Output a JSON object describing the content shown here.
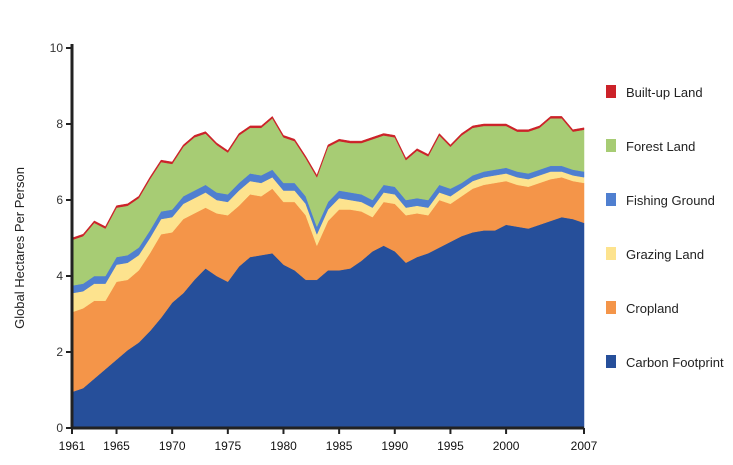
{
  "chart_data": {
    "type": "area",
    "stacked": true,
    "ylabel": "Global Hectares Per Person",
    "xlabel": "",
    "ylim": [
      0,
      10
    ],
    "xlim": [
      1961,
      2007
    ],
    "yticks": [
      0,
      2,
      4,
      6,
      8,
      10
    ],
    "xticks": [
      1961,
      1965,
      1970,
      1975,
      1980,
      1985,
      1990,
      1995,
      2000,
      2007
    ],
    "legend_position": "right",
    "grid": false,
    "x": [
      1961,
      1962,
      1963,
      1964,
      1965,
      1966,
      1967,
      1968,
      1969,
      1970,
      1971,
      1972,
      1973,
      1974,
      1975,
      1976,
      1977,
      1978,
      1979,
      1980,
      1981,
      1982,
      1983,
      1984,
      1985,
      1986,
      1987,
      1988,
      1989,
      1990,
      1991,
      1992,
      1993,
      1994,
      1995,
      1996,
      1997,
      1998,
      1999,
      2000,
      2001,
      2002,
      2003,
      2004,
      2005,
      2006,
      2007
    ],
    "series": [
      {
        "name": "Carbon Footprint",
        "color": "#264f9a",
        "values": [
          0.95,
          1.05,
          1.3,
          1.55,
          1.8,
          2.05,
          2.25,
          2.55,
          2.9,
          3.3,
          3.55,
          3.9,
          4.2,
          4.0,
          3.85,
          4.25,
          4.5,
          4.55,
          4.6,
          4.3,
          4.15,
          3.9,
          3.9,
          4.15,
          4.15,
          4.2,
          4.4,
          4.65,
          4.8,
          4.65,
          4.35,
          4.5,
          4.6,
          4.75,
          4.9,
          5.05,
          5.15,
          5.2,
          5.2,
          5.35,
          5.3,
          5.25,
          5.35,
          5.45,
          5.55,
          5.5,
          5.4
        ]
      },
      {
        "name": "Cropland",
        "color": "#f49549",
        "values": [
          2.1,
          2.1,
          2.05,
          1.8,
          2.05,
          1.85,
          1.9,
          2.05,
          2.2,
          1.85,
          1.95,
          1.75,
          1.6,
          1.65,
          1.75,
          1.6,
          1.65,
          1.55,
          1.7,
          1.65,
          1.8,
          1.7,
          0.9,
          1.3,
          1.6,
          1.55,
          1.3,
          0.9,
          1.15,
          1.25,
          1.25,
          1.15,
          1.0,
          1.25,
          1.0,
          1.05,
          1.15,
          1.2,
          1.25,
          1.15,
          1.1,
          1.1,
          1.1,
          1.1,
          1.05,
          1.0,
          1.05
        ]
      },
      {
        "name": "Grazing Land",
        "color": "#fde38e",
        "values": [
          0.5,
          0.45,
          0.45,
          0.45,
          0.45,
          0.45,
          0.4,
          0.4,
          0.4,
          0.4,
          0.4,
          0.4,
          0.4,
          0.35,
          0.35,
          0.4,
          0.35,
          0.35,
          0.3,
          0.3,
          0.3,
          0.3,
          0.3,
          0.3,
          0.3,
          0.25,
          0.25,
          0.25,
          0.25,
          0.25,
          0.2,
          0.2,
          0.2,
          0.2,
          0.2,
          0.2,
          0.2,
          0.2,
          0.2,
          0.2,
          0.2,
          0.2,
          0.2,
          0.2,
          0.15,
          0.15,
          0.15
        ]
      },
      {
        "name": "Fishing Ground",
        "color": "#4f7fd0",
        "values": [
          0.2,
          0.2,
          0.2,
          0.2,
          0.2,
          0.2,
          0.2,
          0.2,
          0.2,
          0.2,
          0.2,
          0.2,
          0.2,
          0.2,
          0.2,
          0.2,
          0.2,
          0.2,
          0.2,
          0.2,
          0.2,
          0.2,
          0.2,
          0.2,
          0.2,
          0.2,
          0.2,
          0.2,
          0.2,
          0.2,
          0.2,
          0.2,
          0.2,
          0.2,
          0.2,
          0.15,
          0.15,
          0.15,
          0.15,
          0.15,
          0.15,
          0.15,
          0.15,
          0.15,
          0.15,
          0.15,
          0.15
        ]
      },
      {
        "name": "Forest Land",
        "color": "#a7cc74",
        "values": [
          1.2,
          1.25,
          1.4,
          1.25,
          1.3,
          1.3,
          1.3,
          1.35,
          1.3,
          1.2,
          1.3,
          1.4,
          1.35,
          1.25,
          1.1,
          1.25,
          1.2,
          1.25,
          1.35,
          1.2,
          1.1,
          1.0,
          1.3,
          1.45,
          1.3,
          1.3,
          1.35,
          1.6,
          1.3,
          1.3,
          1.05,
          1.25,
          1.15,
          1.3,
          1.1,
          1.25,
          1.25,
          1.2,
          1.15,
          1.1,
          1.05,
          1.1,
          1.1,
          1.25,
          1.25,
          1.0,
          1.1
        ]
      },
      {
        "name": "Built-up Land",
        "color": "#cc2229",
        "values": [
          0.05,
          0.05,
          0.05,
          0.05,
          0.05,
          0.05,
          0.05,
          0.05,
          0.05,
          0.05,
          0.05,
          0.05,
          0.05,
          0.05,
          0.05,
          0.05,
          0.05,
          0.05,
          0.05,
          0.05,
          0.05,
          0.05,
          0.05,
          0.05,
          0.05,
          0.05,
          0.05,
          0.05,
          0.05,
          0.05,
          0.05,
          0.05,
          0.05,
          0.05,
          0.05,
          0.05,
          0.05,
          0.05,
          0.05,
          0.05,
          0.05,
          0.05,
          0.05,
          0.05,
          0.05,
          0.05,
          0.05
        ]
      }
    ]
  }
}
